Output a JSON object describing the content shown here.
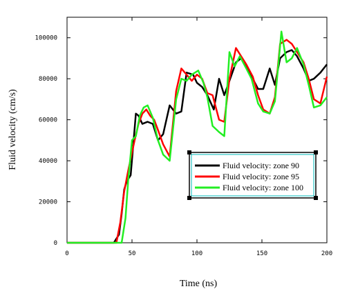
{
  "chart_data": {
    "type": "line",
    "title": "",
    "xlabel": "Time (ns)",
    "ylabel": "Fluid velocity (cm/s)",
    "xlim": [
      0,
      200
    ],
    "ylim": [
      0,
      110000
    ],
    "x_ticks": [
      "0",
      "50",
      "100",
      "150",
      "200"
    ],
    "x_tick_values": [
      0,
      50,
      100,
      150,
      200
    ],
    "y_ticks": [
      "0",
      "20000",
      "40000",
      "60000",
      "80000",
      "100000"
    ],
    "y_tick_values": [
      0,
      20000,
      40000,
      60000,
      80000,
      100000
    ],
    "grid": false,
    "legend_position": "center-right",
    "series": [
      {
        "name": "Fluid velocity: zone 90",
        "color": "#000000",
        "x": [
          0,
          36,
          40,
          42,
          44,
          46,
          49,
          51,
          53,
          55,
          58,
          62,
          66,
          70,
          74,
          79,
          84,
          88,
          92,
          97,
          100,
          104,
          108,
          113,
          117,
          121,
          125,
          130,
          134,
          138,
          143,
          147,
          151,
          156,
          160,
          164,
          169,
          173,
          177,
          182,
          186,
          190,
          195,
          200
        ],
        "y": [
          0,
          0,
          4000,
          14000,
          26000,
          30000,
          33000,
          48000,
          63000,
          62000,
          58000,
          59000,
          58000,
          50000,
          53000,
          67000,
          63000,
          64000,
          83000,
          82000,
          78000,
          76000,
          72000,
          65000,
          80000,
          72000,
          79000,
          88000,
          90000,
          86000,
          80000,
          75000,
          75000,
          85000,
          77000,
          90000,
          93000,
          94000,
          91000,
          85000,
          79000,
          80000,
          83000,
          87000
        ]
      },
      {
        "name": "Fluid velocity: zone 95",
        "color": "#ff0000",
        "x": [
          0,
          38,
          41,
          44,
          47,
          50,
          52,
          55,
          58,
          61,
          64,
          67,
          70,
          74,
          79,
          84,
          88,
          92,
          96,
          100,
          104,
          108,
          112,
          117,
          121,
          125,
          130,
          134,
          138,
          143,
          147,
          151,
          156,
          160,
          164,
          169,
          173,
          177,
          182,
          186,
          190,
          195,
          200
        ],
        "y": [
          0,
          0,
          10000,
          25000,
          35000,
          44000,
          50000,
          58000,
          63000,
          65000,
          62000,
          60000,
          55000,
          48000,
          42000,
          74000,
          85000,
          82000,
          79000,
          82000,
          80000,
          73000,
          72000,
          60000,
          59000,
          80000,
          95000,
          91000,
          87000,
          81000,
          72000,
          65000,
          63000,
          71000,
          97000,
          99000,
          97000,
          93000,
          88000,
          80000,
          70000,
          68000,
          81000
        ]
      },
      {
        "name": "Fluid velocity: zone 100",
        "color": "#22ee22",
        "x": [
          0,
          42,
          45,
          47,
          50,
          53,
          56,
          59,
          62,
          66,
          70,
          74,
          79,
          84,
          88,
          92,
          96,
          101,
          105,
          108,
          112,
          117,
          121,
          125,
          129,
          133,
          138,
          142,
          147,
          151,
          156,
          160,
          165,
          169,
          173,
          177,
          182,
          186,
          190,
          195,
          200
        ],
        "y": [
          0,
          0,
          12000,
          30000,
          50000,
          52000,
          62000,
          66000,
          67000,
          61000,
          50000,
          43000,
          40000,
          70000,
          80000,
          79000,
          82000,
          84000,
          78000,
          71000,
          57000,
          54000,
          52000,
          93000,
          86000,
          91000,
          85000,
          80000,
          68000,
          64000,
          63000,
          69000,
          103000,
          88000,
          90000,
          95000,
          87000,
          77000,
          66000,
          67000,
          71000
        ]
      }
    ]
  }
}
